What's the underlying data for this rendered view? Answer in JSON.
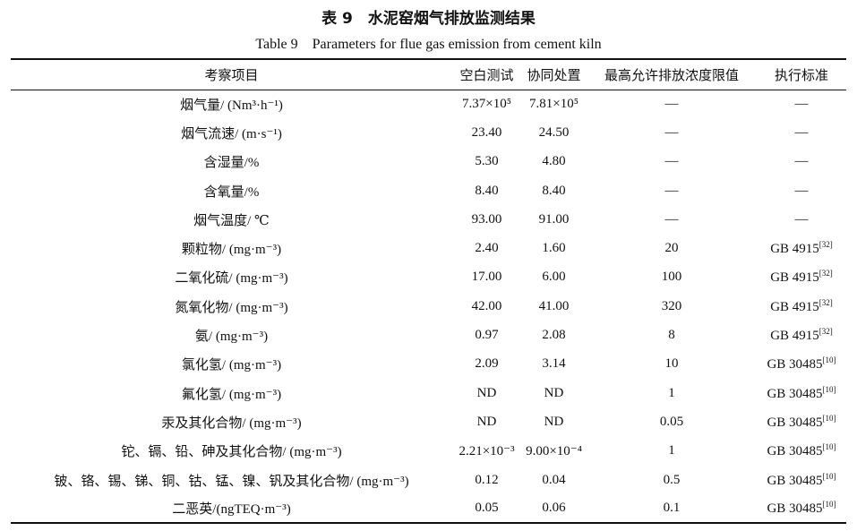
{
  "title": "表 9　水泥窑烟气排放监测结果",
  "subtitle": "Table 9　Parameters for flue gas emission from cement kiln",
  "table": {
    "header": [
      "考察项目",
      "空白测试",
      "协同处置",
      "最高允许排放浓度限值",
      "执行标准"
    ],
    "rows": [
      [
        "烟气量/ (Nm³·h⁻¹)",
        "7.37×10⁵",
        "7.81×10⁵",
        "—",
        "—"
      ],
      [
        "烟气流速/ (m·s⁻¹)",
        "23.40",
        "24.50",
        "—",
        "—"
      ],
      [
        "含湿量/%",
        "5.30",
        "4.80",
        "—",
        "—"
      ],
      [
        "含氧量/%",
        "8.40",
        "8.40",
        "—",
        "—"
      ],
      [
        "烟气温度/ ℃",
        "93.00",
        "91.00",
        "—",
        "—"
      ],
      [
        "颗粒物/ (mg·m⁻³)",
        "2.40",
        "1.60",
        "20",
        {
          "text": "GB 4915",
          "ref": "[32]"
        }
      ],
      [
        "二氧化硫/ (mg·m⁻³)",
        "17.00",
        "6.00",
        "100",
        {
          "text": "GB 4915",
          "ref": "[32]"
        }
      ],
      [
        "氮氧化物/ (mg·m⁻³)",
        "42.00",
        "41.00",
        "320",
        {
          "text": "GB 4915",
          "ref": "[32]"
        }
      ],
      [
        "氨/ (mg·m⁻³)",
        "0.97",
        "2.08",
        "8",
        {
          "text": "GB 4915",
          "ref": "[32]"
        }
      ],
      [
        "氯化氢/ (mg·m⁻³)",
        "2.09",
        "3.14",
        "10",
        {
          "text": "GB 30485",
          "ref": "[10]"
        }
      ],
      [
        "氟化氢/ (mg·m⁻³)",
        "ND",
        "ND",
        "1",
        {
          "text": "GB 30485",
          "ref": "[10]"
        }
      ],
      [
        "汞及其化合物/ (mg·m⁻³)",
        "ND",
        "ND",
        "0.05",
        {
          "text": "GB 30485",
          "ref": "[10]"
        }
      ],
      [
        "铊、镉、铅、砷及其化合物/ (mg·m⁻³)",
        "2.21×10⁻³",
        "9.00×10⁻⁴",
        "1",
        {
          "text": "GB 30485",
          "ref": "[10]"
        }
      ],
      [
        "铍、铬、锡、锑、铜、钴、锰、镍、钒及其化合物/ (mg·m⁻³)",
        "0.12",
        "0.04",
        "0.5",
        {
          "text": "GB 30485",
          "ref": "[10]"
        }
      ],
      [
        "二恶英/(ngTEQ·m⁻³)",
        "0.05",
        "0.06",
        "0.1",
        {
          "text": "GB 30485",
          "ref": "[10]"
        }
      ]
    ]
  }
}
